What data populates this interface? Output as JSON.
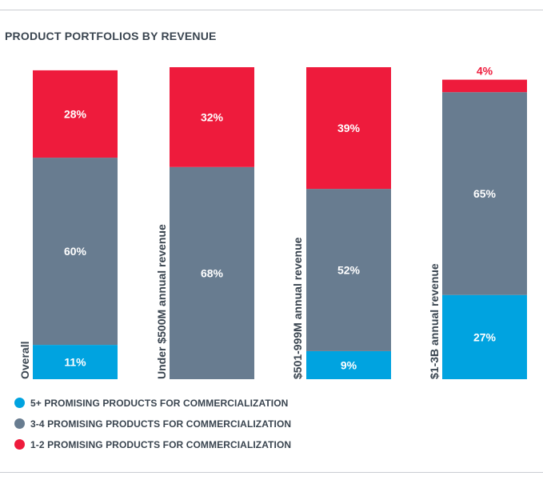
{
  "chart_data": {
    "type": "bar",
    "stacked": true,
    "title": "PRODUCT PORTFOLIOS BY REVENUE",
    "categories": [
      "Overall",
      "Under $500M annual revenue",
      "$501-999M annual revenue",
      "$1-3B annual revenue"
    ],
    "series": [
      {
        "name": "5+ PROMISING PRODUCTS FOR COMMERCIALIZATION",
        "color": "#00a3e0",
        "values": [
          11,
          0,
          9,
          27
        ],
        "labels": [
          "11%",
          "",
          "9%",
          "27%"
        ]
      },
      {
        "name": "3-4 PROMISING PRODUCTS FOR COMMERCIALIZATION",
        "color": "#687c90",
        "values": [
          60,
          68,
          52,
          65
        ],
        "labels": [
          "60%",
          "68%",
          "52%",
          "65%"
        ]
      },
      {
        "name": "1-2 PROMISING PRODUCTS FOR COMMERCIALIZATION",
        "color": "#ee1b3c",
        "values": [
          28,
          32,
          39,
          4
        ],
        "labels": [
          "28%",
          "32%",
          "39%",
          "4%"
        ]
      }
    ],
    "ylim": [
      0,
      100
    ],
    "grid": false,
    "legend_position": "bottom-left"
  }
}
